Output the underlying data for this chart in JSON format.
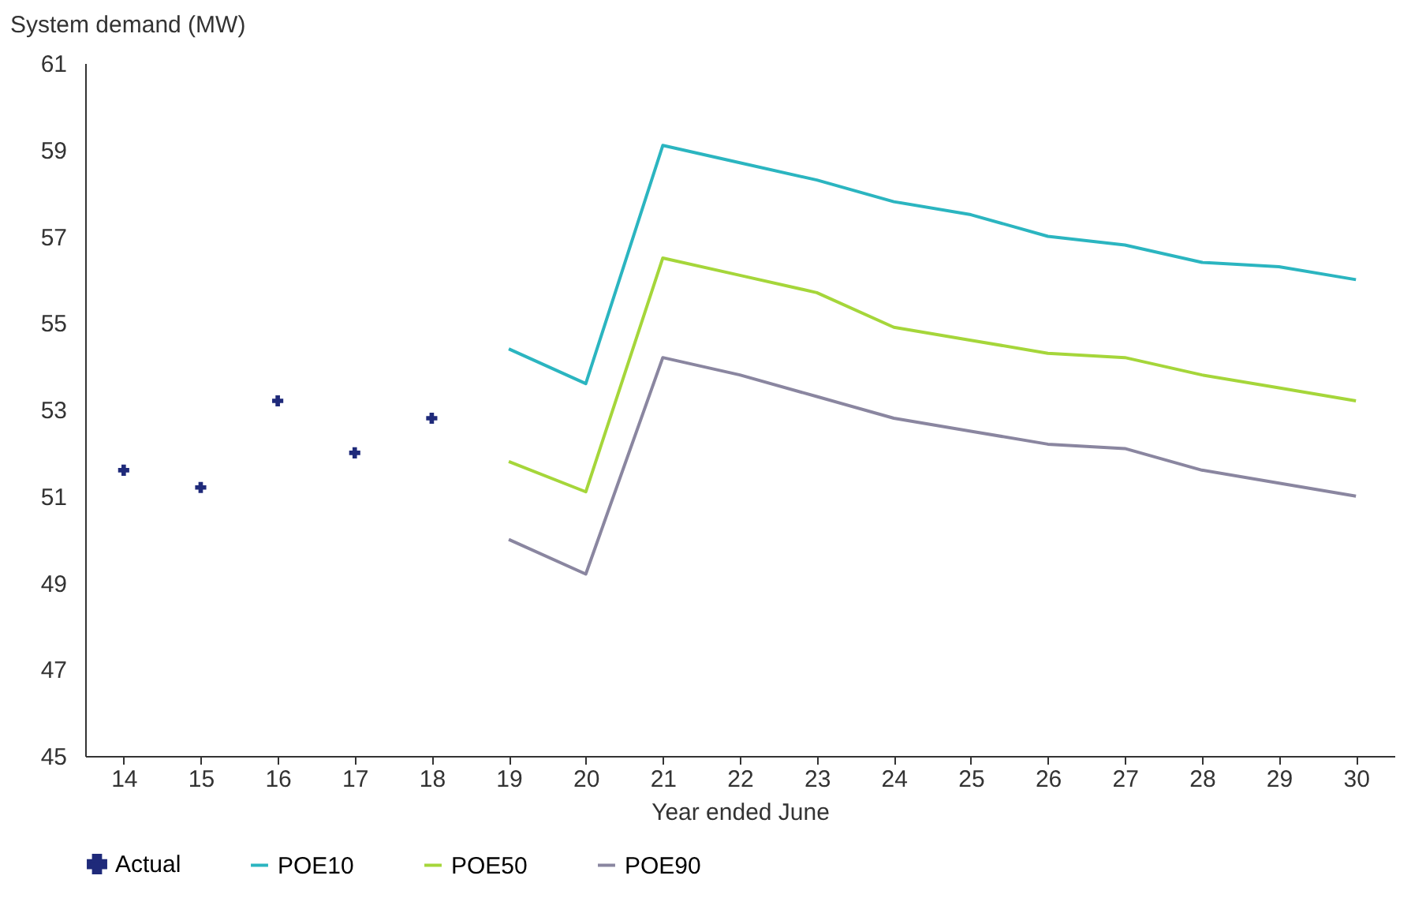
{
  "chart_data": {
    "type": "line",
    "ylabel": "System demand (MW)",
    "xlabel": "Year ended June",
    "categories": [
      "14",
      "15",
      "16",
      "17",
      "18",
      "19",
      "20",
      "21",
      "22",
      "23",
      "24",
      "25",
      "26",
      "27",
      "28",
      "29",
      "30"
    ],
    "ylim": [
      45,
      61
    ],
    "yticks": [
      45,
      47,
      49,
      51,
      53,
      55,
      57,
      59,
      61
    ],
    "grid": false,
    "legend": "bottom",
    "series": [
      {
        "name": "Actual",
        "type": "scatter",
        "marker": "cross",
        "color": "#1f2a7a",
        "values": [
          51.6,
          51.2,
          53.2,
          52.0,
          52.8,
          null,
          null,
          null,
          null,
          null,
          null,
          null,
          null,
          null,
          null,
          null,
          null
        ]
      },
      {
        "name": "POE10",
        "color": "#2bb5c0",
        "values": [
          null,
          null,
          null,
          null,
          null,
          54.4,
          53.6,
          59.1,
          58.7,
          58.3,
          57.8,
          57.5,
          57.0,
          56.8,
          56.4,
          56.3,
          56.0
        ]
      },
      {
        "name": "POE50",
        "color": "#a5d63a",
        "values": [
          null,
          null,
          null,
          null,
          null,
          51.8,
          51.1,
          56.5,
          56.1,
          55.7,
          54.9,
          54.6,
          54.3,
          54.2,
          53.8,
          53.5,
          53.2
        ]
      },
      {
        "name": "POE90",
        "color": "#8a86a0",
        "values": [
          null,
          null,
          null,
          null,
          null,
          50.0,
          49.2,
          54.2,
          53.8,
          53.3,
          52.8,
          52.5,
          52.2,
          52.1,
          51.6,
          51.3,
          51.0
        ]
      }
    ]
  }
}
